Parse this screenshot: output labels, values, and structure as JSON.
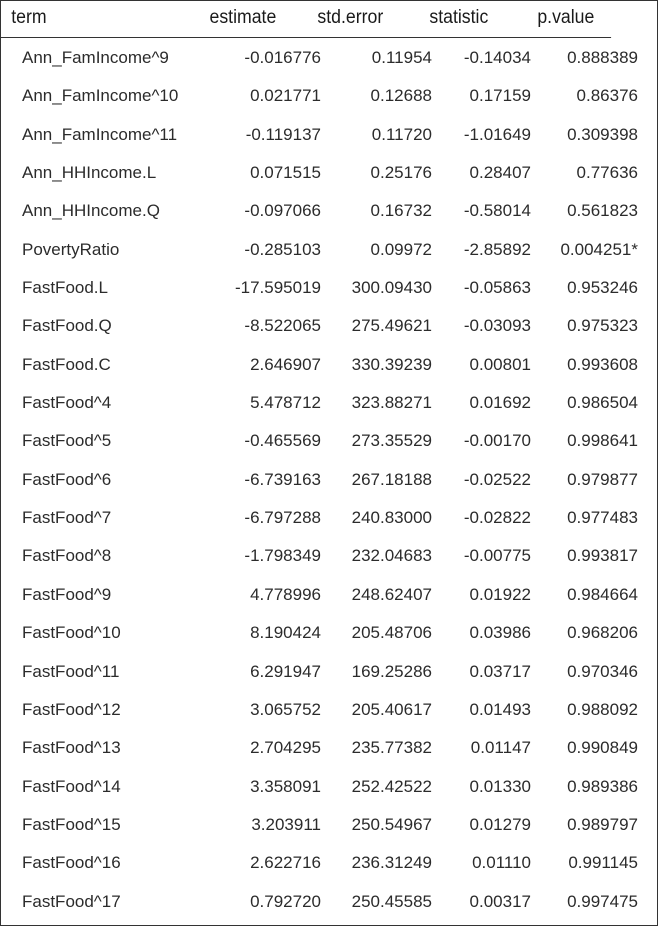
{
  "table": {
    "columns": [
      "term",
      "estimate",
      "std.error",
      "statistic",
      "p.value"
    ],
    "rows": [
      {
        "term": "Ann_FamIncome^9",
        "estimate": "-0.016776",
        "std_error": "0.11954",
        "statistic": "-0.14034",
        "p_value": "0.888389"
      },
      {
        "term": "Ann_FamIncome^10",
        "estimate": "0.021771",
        "std_error": "0.12688",
        "statistic": "0.17159",
        "p_value": "0.86376"
      },
      {
        "term": "Ann_FamIncome^11",
        "estimate": "-0.119137",
        "std_error": "0.11720",
        "statistic": "-1.01649",
        "p_value": "0.309398"
      },
      {
        "term": "Ann_HHIncome.L",
        "estimate": "0.071515",
        "std_error": "0.25176",
        "statistic": "0.28407",
        "p_value": "0.77636"
      },
      {
        "term": "Ann_HHIncome.Q",
        "estimate": "-0.097066",
        "std_error": "0.16732",
        "statistic": "-0.58014",
        "p_value": "0.561823"
      },
      {
        "term": "PovertyRatio",
        "estimate": "-0.285103",
        "std_error": "0.09972",
        "statistic": "-2.85892",
        "p_value": "0.004251*"
      },
      {
        "term": "FastFood.L",
        "estimate": "-17.595019",
        "std_error": "300.09430",
        "statistic": "-0.05863",
        "p_value": "0.953246"
      },
      {
        "term": "FastFood.Q",
        "estimate": "-8.522065",
        "std_error": "275.49621",
        "statistic": "-0.03093",
        "p_value": "0.975323"
      },
      {
        "term": "FastFood.C",
        "estimate": "2.646907",
        "std_error": "330.39239",
        "statistic": "0.00801",
        "p_value": "0.993608"
      },
      {
        "term": "FastFood^4",
        "estimate": "5.478712",
        "std_error": "323.88271",
        "statistic": "0.01692",
        "p_value": "0.986504"
      },
      {
        "term": "FastFood^5",
        "estimate": "-0.465569",
        "std_error": "273.35529",
        "statistic": "-0.00170",
        "p_value": "0.998641"
      },
      {
        "term": "FastFood^6",
        "estimate": "-6.739163",
        "std_error": "267.18188",
        "statistic": "-0.02522",
        "p_value": "0.979877"
      },
      {
        "term": "FastFood^7",
        "estimate": "-6.797288",
        "std_error": "240.83000",
        "statistic": "-0.02822",
        "p_value": "0.977483"
      },
      {
        "term": "FastFood^8",
        "estimate": "-1.798349",
        "std_error": "232.04683",
        "statistic": "-0.00775",
        "p_value": "0.993817"
      },
      {
        "term": "FastFood^9",
        "estimate": "4.778996",
        "std_error": "248.62407",
        "statistic": "0.01922",
        "p_value": "0.984664"
      },
      {
        "term": "FastFood^10",
        "estimate": "8.190424",
        "std_error": "205.48706",
        "statistic": "0.03986",
        "p_value": "0.968206"
      },
      {
        "term": "FastFood^11",
        "estimate": "6.291947",
        "std_error": "169.25286",
        "statistic": "0.03717",
        "p_value": "0.970346"
      },
      {
        "term": "FastFood^12",
        "estimate": "3.065752",
        "std_error": "205.40617",
        "statistic": "0.01493",
        "p_value": "0.988092"
      },
      {
        "term": "FastFood^13",
        "estimate": "2.704295",
        "std_error": "235.77382",
        "statistic": "0.01147",
        "p_value": "0.990849"
      },
      {
        "term": "FastFood^14",
        "estimate": "3.358091",
        "std_error": "252.42522",
        "statistic": "0.01330",
        "p_value": "0.989386"
      },
      {
        "term": "FastFood^15",
        "estimate": "3.203911",
        "std_error": "250.54967",
        "statistic": "0.01279",
        "p_value": "0.989797"
      },
      {
        "term": "FastFood^16",
        "estimate": "2.622716",
        "std_error": "236.31249",
        "statistic": "0.01110",
        "p_value": "0.991145"
      },
      {
        "term": "FastFood^17",
        "estimate": "0.792720",
        "std_error": "250.45585",
        "statistic": "0.00317",
        "p_value": "0.997475"
      }
    ]
  }
}
